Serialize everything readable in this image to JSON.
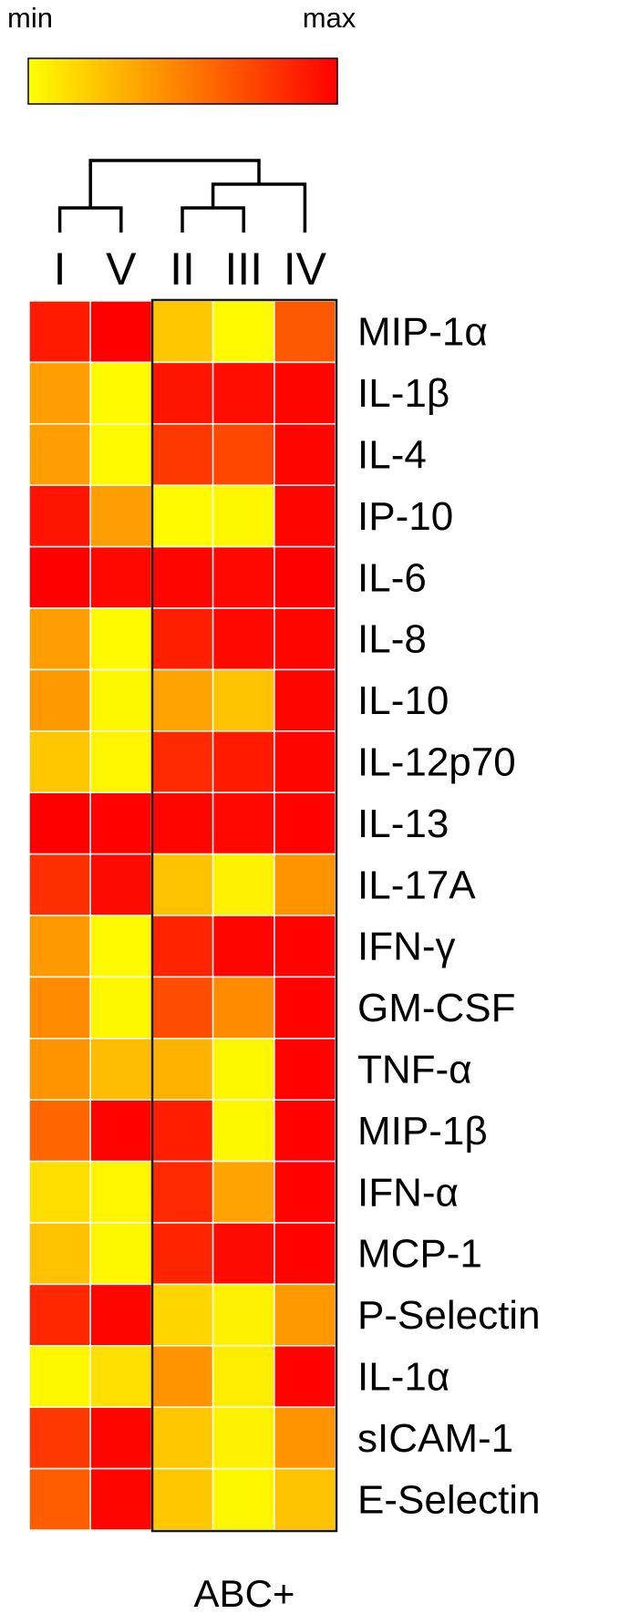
{
  "chart_data": {
    "type": "heatmap",
    "title": "",
    "xlabel": "",
    "ylabel": "",
    "colorbar": {
      "min_label": "min",
      "max_label": "max",
      "min_color": "#ffff00",
      "max_color": "#ff0000"
    },
    "columns": [
      "I",
      "V",
      "II",
      "III",
      "IV"
    ],
    "rows": [
      "MIP-1α",
      "IL-1β",
      "IL-4",
      "IP-10",
      "IL-6",
      "IL-8",
      "IL-10",
      "IL-12p70",
      "IL-13",
      "IL-17A",
      "IFN-γ",
      "GM-CSF",
      "TNF-α",
      "MIP-1β",
      "IFN-α",
      "MCP-1",
      "P-Selectin",
      "IL-1α",
      "sICAM-1",
      "E-Selectin"
    ],
    "values": [
      [
        0.9,
        1.0,
        0.22,
        0.02,
        0.65
      ],
      [
        0.38,
        0.02,
        0.92,
        0.95,
        0.98
      ],
      [
        0.38,
        0.02,
        0.78,
        0.72,
        0.98
      ],
      [
        0.92,
        0.38,
        0.02,
        0.03,
        0.98
      ],
      [
        1.0,
        0.97,
        0.98,
        0.97,
        1.0
      ],
      [
        0.38,
        0.02,
        0.88,
        0.97,
        0.98
      ],
      [
        0.4,
        0.03,
        0.36,
        0.24,
        0.98
      ],
      [
        0.22,
        0.04,
        0.84,
        0.9,
        0.98
      ],
      [
        1.0,
        0.99,
        0.98,
        0.97,
        0.99
      ],
      [
        0.82,
        0.96,
        0.24,
        0.05,
        0.42
      ],
      [
        0.4,
        0.02,
        0.86,
        0.98,
        0.99
      ],
      [
        0.45,
        0.03,
        0.7,
        0.45,
        0.99
      ],
      [
        0.42,
        0.26,
        0.3,
        0.03,
        0.99
      ],
      [
        0.6,
        0.99,
        0.88,
        0.03,
        0.99
      ],
      [
        0.13,
        0.04,
        0.84,
        0.36,
        0.99
      ],
      [
        0.24,
        0.03,
        0.86,
        0.96,
        0.99
      ],
      [
        0.85,
        0.98,
        0.16,
        0.05,
        0.4
      ],
      [
        0.03,
        0.12,
        0.42,
        0.07,
        0.99
      ],
      [
        0.78,
        0.98,
        0.22,
        0.05,
        0.42
      ],
      [
        0.64,
        0.98,
        0.22,
        0.03,
        0.24
      ]
    ],
    "dendrogram": {
      "leaves": [
        "I",
        "V",
        "II",
        "III",
        "IV"
      ],
      "merges": [
        [
          "I",
          "V"
        ],
        [
          "II",
          "III"
        ],
        [
          "II+III",
          "IV"
        ],
        [
          "I+V",
          "II+III+IV"
        ]
      ]
    },
    "group_box": {
      "label": "ABC+",
      "columns": [
        "II",
        "III",
        "IV"
      ]
    }
  }
}
